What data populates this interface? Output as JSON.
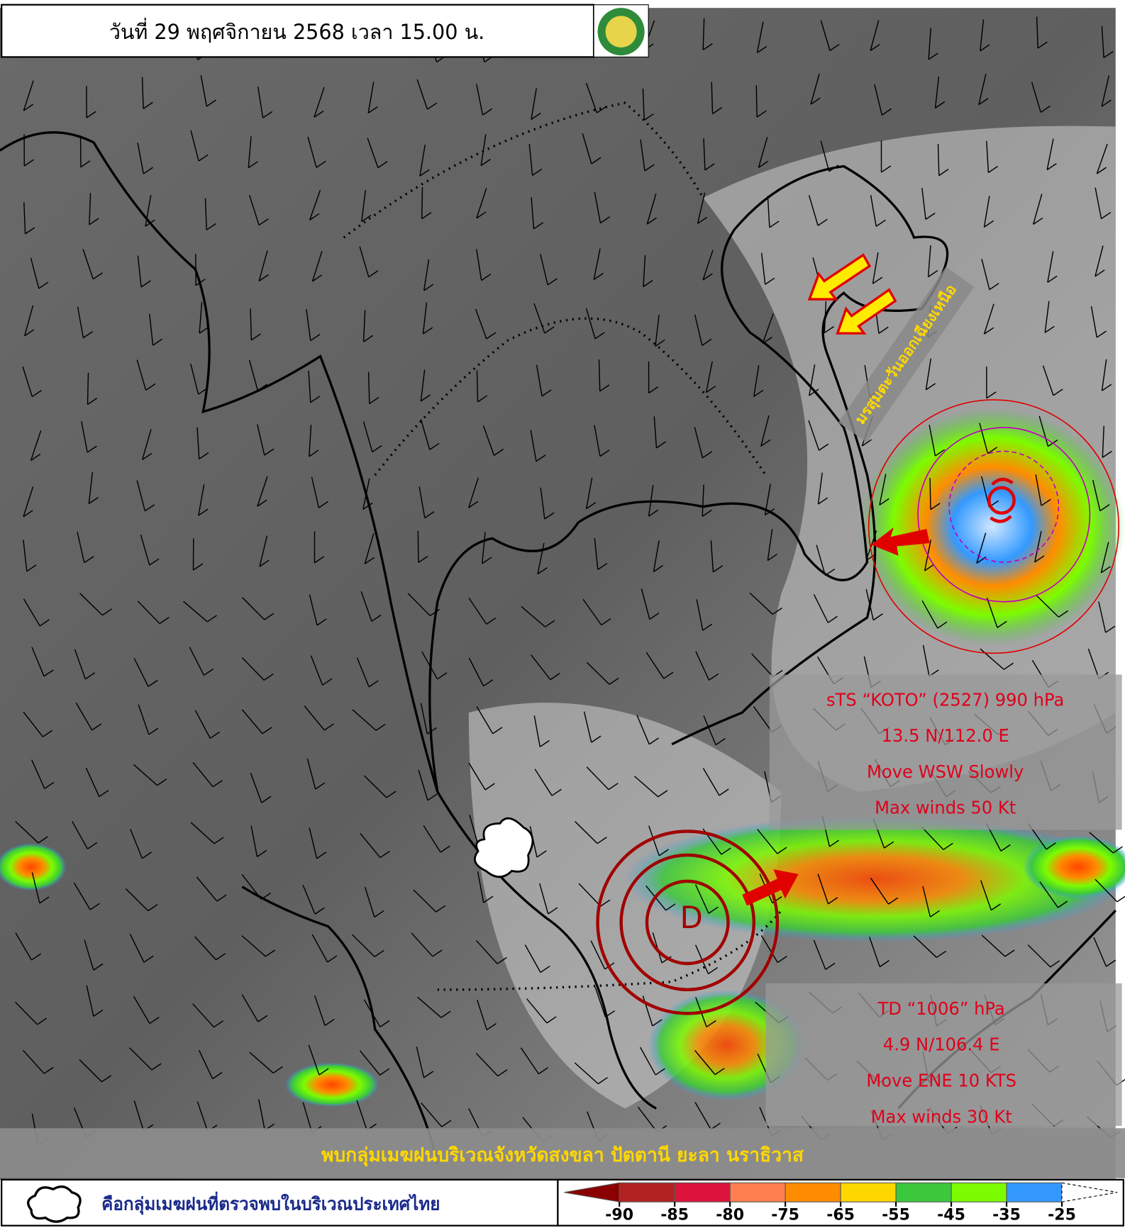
{
  "header": {
    "title": "วันที่ 29 พฤศจิกายน 2568 เวลา 15.00 น."
  },
  "monsoon_label": "มรสุมตะวันออกเฉียงเหนือ",
  "storms": [
    {
      "symbol": "D",
      "lines": [
        "TD “1006” hPa",
        "4.9 N/106.4 E",
        "Move ENE 10 KTS",
        "Max winds 30 Kt"
      ]
    },
    {
      "lines": [
        "sTS “KOTO” (2527) 990 hPa",
        "13.5 N/112.0 E",
        "Move WSW Slowly",
        "Max winds 50 Kt"
      ]
    }
  ],
  "banner": "พบกลุ่มเมฆฝนบริเวณจังหวัดสงขลา ปัตตานี ยะลา นราธิวาส",
  "legend": {
    "text": "คือกลุ่มเมฆฝนที่ตรวจพบในบริเวณประเทศไทย"
  },
  "color_scale": {
    "ticks": [
      -90,
      -85,
      -80,
      -75,
      -65,
      -55,
      -45,
      -35,
      -25
    ],
    "colors": [
      "#8b0000",
      "#b22222",
      "#dc143c",
      "#ff7f50",
      "#ff8c00",
      "#ffd700",
      "#3cc83c",
      "#7cfc00",
      "#3399ff",
      "#ffffff"
    ]
  }
}
